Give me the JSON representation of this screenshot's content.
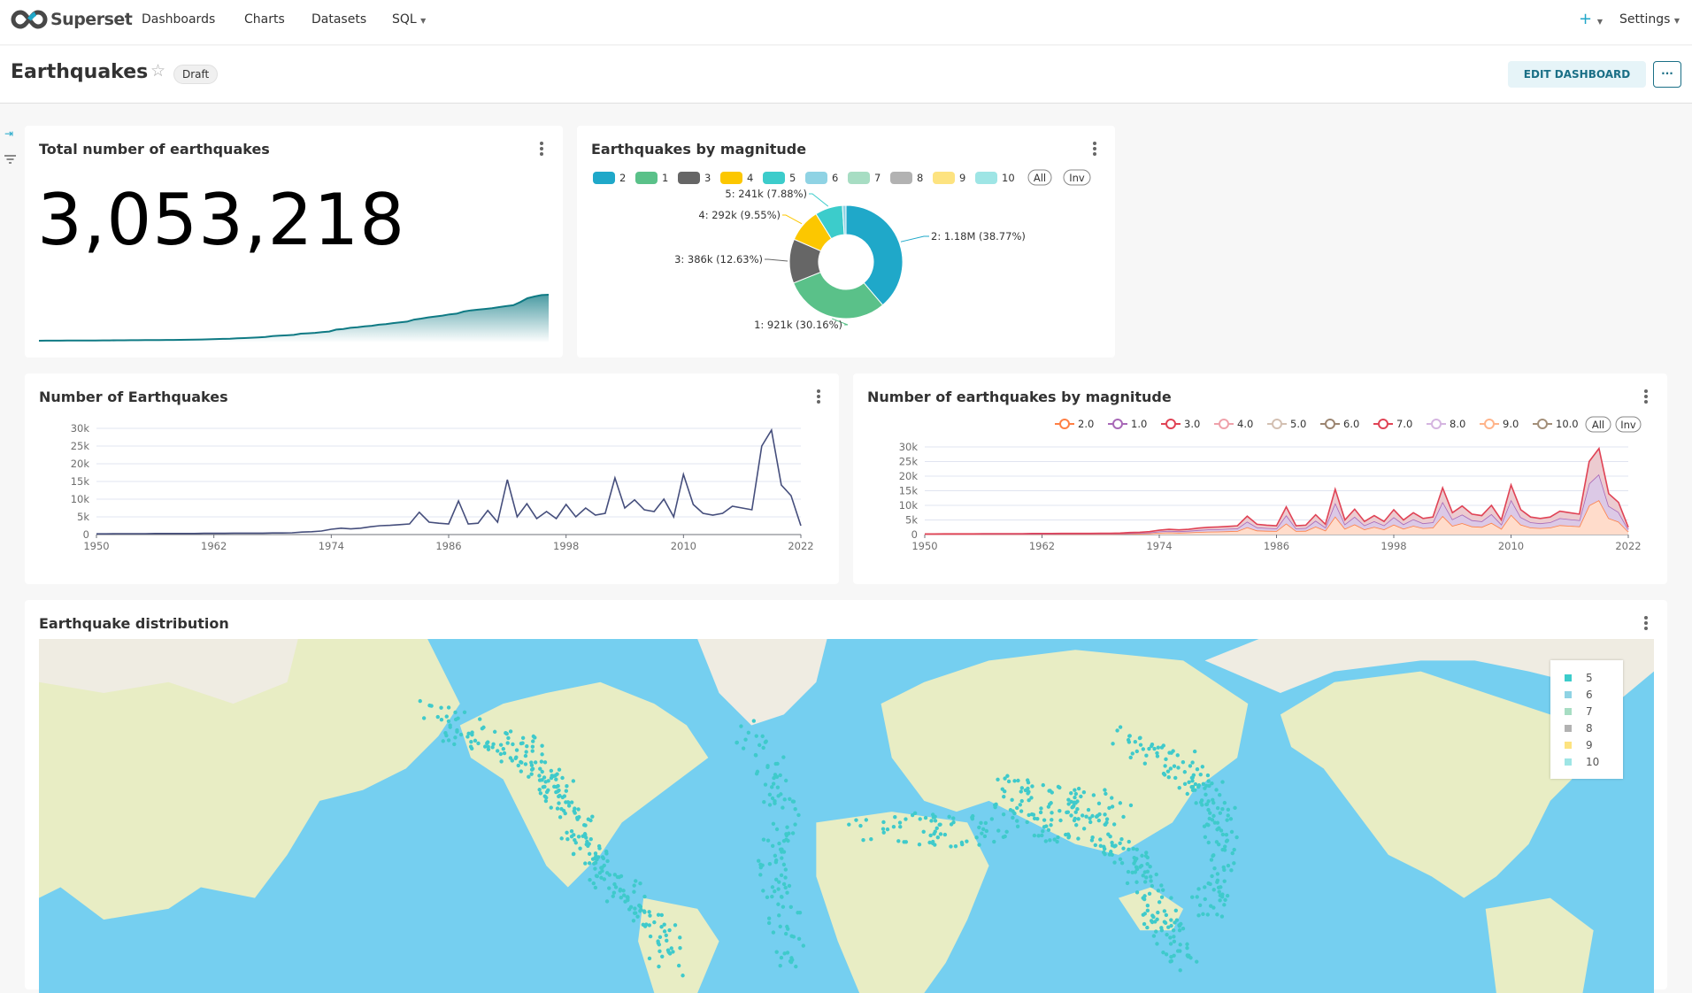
{
  "nav": {
    "brand": "Superset",
    "items": [
      "Dashboards",
      "Charts",
      "Datasets",
      "SQL"
    ],
    "plus": "+",
    "settings": "Settings"
  },
  "header": {
    "title": "Earthquakes",
    "status": "Draft",
    "edit_button": "EDIT DASHBOARD",
    "more_button": "···"
  },
  "colors": {
    "accent": "#20a7c9",
    "line": "#454e7c",
    "sparkline": "#0f7a84",
    "ocean": "#75cff0",
    "land": "#e8edc4",
    "dots": "#3fcacb"
  },
  "cards": {
    "total": {
      "title": "Total number of earthquakes",
      "value": "3,053,218"
    },
    "pie": {
      "title": "Earthquakes by magnitude"
    },
    "line": {
      "title": "Number of Earthquakes"
    },
    "mag": {
      "title": "Number of earthquakes by magnitude"
    },
    "map": {
      "title": "Earthquake distribution",
      "legend": [
        {
          "label": "5",
          "color": "#3ccccb"
        },
        {
          "label": "6",
          "color": "#8fd3e4"
        },
        {
          "label": "7",
          "color": "#a7ddc3"
        },
        {
          "label": "8",
          "color": "#b2b2b2"
        },
        {
          "label": "9",
          "color": "#fde380"
        },
        {
          "label": "10",
          "color": "#9ee5e5"
        }
      ]
    }
  },
  "chart_data": [
    {
      "type": "pie",
      "donut": true,
      "legend": [
        {
          "label": "2",
          "color": "#1fa8c9"
        },
        {
          "label": "1",
          "color": "#5ac189"
        },
        {
          "label": "3",
          "color": "#666666"
        },
        {
          "label": "4",
          "color": "#fcc700"
        },
        {
          "label": "5",
          "color": "#3ccccb"
        },
        {
          "label": "6",
          "color": "#8fd3e4"
        },
        {
          "label": "7",
          "color": "#a7ddc3"
        },
        {
          "label": "8",
          "color": "#b2b2b2"
        },
        {
          "label": "9",
          "color": "#fde380"
        },
        {
          "label": "10",
          "color": "#9ee5e5"
        }
      ],
      "legend_buttons": [
        "All",
        "Inv"
      ],
      "slices": [
        {
          "name": "2",
          "percent": 38.77,
          "label": "2: 1.18M (38.77%)"
        },
        {
          "name": "1",
          "percent": 30.16,
          "label": "1: 921k (30.16%)"
        },
        {
          "name": "3",
          "percent": 12.63,
          "label": "3: 386k (12.63%)"
        },
        {
          "name": "4",
          "percent": 9.55,
          "label": "4: 292k (9.55%)"
        },
        {
          "name": "5",
          "percent": 7.88,
          "label": "5: 241k (7.88%)"
        }
      ]
    },
    {
      "type": "line",
      "xlim": [
        1950,
        2022
      ],
      "ylim": [
        0,
        30000
      ],
      "xticks": [
        "1950",
        "1962",
        "1974",
        "1986",
        "1998",
        "2010",
        "2022"
      ],
      "yticks": [
        "0",
        "5k",
        "10k",
        "15k",
        "20k",
        "25k",
        "30k"
      ],
      "grid": true,
      "x_start": 1950,
      "values": [
        200,
        200,
        250,
        250,
        250,
        250,
        300,
        300,
        300,
        300,
        300,
        350,
        350,
        350,
        400,
        400,
        400,
        400,
        450,
        450,
        500,
        700,
        800,
        1000,
        1500,
        1800,
        1600,
        1800,
        2200,
        2500,
        2600,
        2800,
        3000,
        6300,
        3500,
        3200,
        3000,
        9500,
        3000,
        3200,
        6800,
        3500,
        15500,
        5000,
        8700,
        4500,
        6500,
        4500,
        8500,
        5000,
        7500,
        5500,
        6000,
        16000,
        7500,
        9800,
        7000,
        6500,
        10000,
        5000,
        17000,
        8500,
        6000,
        5500,
        6000,
        8000,
        7500,
        7000,
        25000,
        29500,
        14000,
        11000,
        2500
      ]
    },
    {
      "type": "line",
      "stacked": true,
      "xlim": [
        1950,
        2022
      ],
      "ylim": [
        0,
        30000
      ],
      "xticks": [
        "1950",
        "1962",
        "1974",
        "1986",
        "1998",
        "2010",
        "2022"
      ],
      "yticks": [
        "0",
        "5k",
        "10k",
        "15k",
        "20k",
        "25k",
        "30k"
      ],
      "grid": true,
      "legend_placement": "top-right",
      "legend_buttons": [
        "All",
        "Inv"
      ],
      "x_start": 1950,
      "series": [
        {
          "name": "2.0",
          "color": "#ff7f44",
          "values": [
            80,
            80,
            100,
            100,
            100,
            100,
            120,
            120,
            120,
            120,
            120,
            140,
            140,
            140,
            160,
            160,
            160,
            160,
            180,
            180,
            200,
            280,
            320,
            400,
            600,
            720,
            640,
            720,
            880,
            1000,
            1040,
            1120,
            1200,
            2520,
            1400,
            1280,
            1200,
            3800,
            1200,
            1280,
            2720,
            1400,
            6200,
            2000,
            3480,
            1800,
            2600,
            1800,
            3400,
            2000,
            3000,
            2200,
            2400,
            6400,
            3000,
            3920,
            2800,
            2600,
            4000,
            2000,
            6800,
            3400,
            2400,
            2200,
            2400,
            3200,
            3000,
            2800,
            10000,
            11800,
            5600,
            4400,
            1000
          ]
        },
        {
          "name": "1.0",
          "color": "#a868b7",
          "values": [
            60,
            60,
            75,
            75,
            75,
            75,
            90,
            90,
            90,
            90,
            90,
            105,
            105,
            105,
            120,
            120,
            120,
            120,
            135,
            135,
            150,
            210,
            240,
            300,
            450,
            540,
            480,
            540,
            660,
            750,
            780,
            840,
            900,
            1890,
            1050,
            960,
            900,
            2850,
            900,
            960,
            2040,
            1050,
            4650,
            1500,
            2610,
            1350,
            1950,
            1350,
            2550,
            1500,
            2250,
            1650,
            1800,
            4800,
            2250,
            2940,
            2100,
            1950,
            3000,
            1500,
            5100,
            2550,
            1800,
            1650,
            1800,
            2400,
            2250,
            2100,
            7500,
            8850,
            4200,
            3300,
            750
          ]
        },
        {
          "name": "3.0",
          "color": "#e04355",
          "values": [
            60,
            60,
            75,
            75,
            75,
            75,
            90,
            90,
            90,
            90,
            90,
            105,
            105,
            105,
            120,
            120,
            120,
            120,
            135,
            135,
            150,
            210,
            240,
            300,
            450,
            540,
            480,
            540,
            660,
            750,
            780,
            840,
            900,
            1890,
            1050,
            960,
            900,
            2850,
            900,
            960,
            2040,
            1050,
            4650,
            1500,
            2610,
            1350,
            1950,
            1350,
            2550,
            1500,
            2250,
            1650,
            1800,
            4800,
            2250,
            2940,
            2100,
            1950,
            3000,
            1500,
            5100,
            2550,
            1800,
            1650,
            1800,
            2400,
            2250,
            2100,
            7500,
            8850,
            4200,
            3300,
            750
          ]
        },
        {
          "name": "4.0",
          "color": "#efa1aa"
        },
        {
          "name": "5.0",
          "color": "#d3c0b2"
        },
        {
          "name": "6.0",
          "color": "#9c8570"
        },
        {
          "name": "7.0",
          "color": "#e04355"
        },
        {
          "name": "8.0",
          "color": "#d5b5e0"
        },
        {
          "name": "9.0",
          "color": "#ffb48a"
        },
        {
          "name": "10.0",
          "color": "#a38f79"
        }
      ]
    }
  ]
}
